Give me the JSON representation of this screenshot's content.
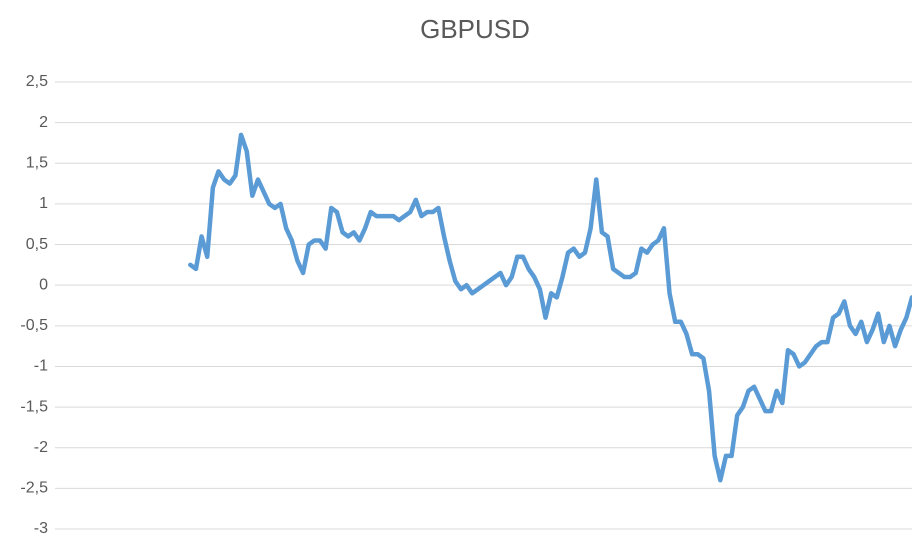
{
  "chart_data": {
    "type": "line",
    "title": "GBPUSD",
    "series": [
      {
        "name": "GBPUSD",
        "color": "#5b9bd5",
        "values": [
          null,
          null,
          null,
          null,
          null,
          null,
          null,
          null,
          null,
          null,
          null,
          null,
          null,
          null,
          null,
          null,
          null,
          null,
          null,
          null,
          null,
          null,
          null,
          null,
          0.25,
          0.2,
          0.6,
          0.35,
          1.2,
          1.4,
          1.3,
          1.25,
          1.35,
          1.85,
          1.65,
          1.1,
          1.3,
          1.15,
          1.0,
          0.95,
          1.0,
          0.7,
          0.55,
          0.3,
          0.15,
          0.5,
          0.55,
          0.55,
          0.45,
          0.95,
          0.9,
          0.65,
          0.6,
          0.65,
          0.55,
          0.7,
          0.9,
          0.85,
          0.85,
          0.85,
          0.85,
          0.8,
          0.85,
          0.9,
          1.05,
          0.85,
          0.9,
          0.9,
          0.95,
          0.6,
          0.3,
          0.05,
          -0.05,
          0.0,
          -0.1,
          -0.05,
          0.0,
          0.05,
          0.1,
          0.15,
          0.0,
          0.1,
          0.35,
          0.35,
          0.2,
          0.1,
          -0.05,
          -0.4,
          -0.1,
          -0.15,
          0.1,
          0.4,
          0.45,
          0.35,
          0.4,
          0.7,
          1.3,
          0.65,
          0.6,
          0.2,
          0.15,
          0.1,
          0.1,
          0.15,
          0.45,
          0.4,
          0.5,
          0.55,
          0.7,
          -0.1,
          -0.45,
          -0.45,
          -0.6,
          -0.85,
          -0.85,
          -0.9,
          -1.3,
          -2.1,
          -2.4,
          -2.1,
          -2.1,
          -1.6,
          -1.5,
          -1.3,
          -1.25,
          -1.4,
          -1.55,
          -1.55,
          -1.3,
          -1.45,
          -0.8,
          -0.85,
          -1.0,
          -0.95,
          -0.85,
          -0.75,
          -0.7,
          -0.7,
          -0.4,
          -0.35,
          -0.2,
          -0.5,
          -0.6,
          -0.45,
          -0.7,
          -0.55,
          -0.35,
          -0.7,
          -0.5,
          -0.75,
          -0.55,
          -0.4,
          -0.15
        ]
      }
    ],
    "ylim": [
      -3,
      2.5
    ],
    "yticks": [
      {
        "value": 2.5,
        "label": "2,5"
      },
      2,
      {
        "value": 1.5,
        "label": "1,5"
      },
      1,
      {
        "value": 0.5,
        "label": "0,5"
      },
      0,
      {
        "value": -0.5,
        "label": "-0,5"
      },
      -1,
      {
        "value": -1.5,
        "label": "-1,5"
      },
      -2,
      {
        "value": -2.5,
        "label": "-2,5"
      },
      -3
    ],
    "grid": true
  }
}
